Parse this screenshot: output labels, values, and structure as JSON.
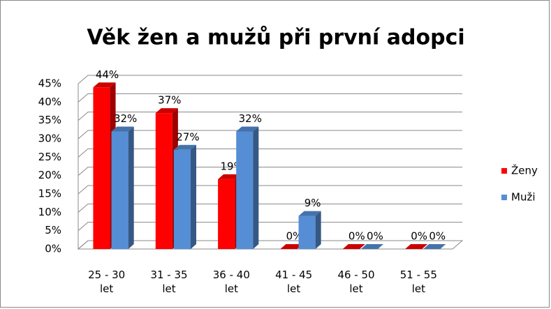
{
  "chart_data": {
    "type": "bar3d",
    "title": "Věk žen a mužů při první adopci",
    "categories": [
      "25 - 30 let",
      "31 - 35 let",
      "36 - 40 let",
      "41 - 45 let",
      "46 - 50 let",
      "51 - 55 let"
    ],
    "series": [
      {
        "name": "Ženy",
        "color": "#ff0000",
        "values": [
          44,
          37,
          19,
          0,
          0,
          0
        ],
        "value_labels": [
          "44%",
          "37%",
          "19%",
          "0%",
          "0%",
          "0%"
        ]
      },
      {
        "name": "Muži",
        "color": "#558ed5",
        "values": [
          32,
          27,
          32,
          9,
          0,
          0
        ],
        "value_labels": [
          "32%",
          "27%",
          "32%",
          "9%",
          "0%",
          "0%"
        ]
      }
    ],
    "ylim": [
      0,
      45
    ],
    "yticks": [
      {
        "value": 0,
        "label": "0%"
      },
      {
        "value": 5,
        "label": "5%"
      },
      {
        "value": 10,
        "label": "10%"
      },
      {
        "value": 15,
        "label": "15%"
      },
      {
        "value": 20,
        "label": "20%"
      },
      {
        "value": 25,
        "label": "25%"
      },
      {
        "value": 30,
        "label": "30%"
      },
      {
        "value": 35,
        "label": "35%"
      },
      {
        "value": 40,
        "label": "40%"
      },
      {
        "value": 45,
        "label": "45%"
      }
    ],
    "grid": true,
    "legend": "right"
  }
}
